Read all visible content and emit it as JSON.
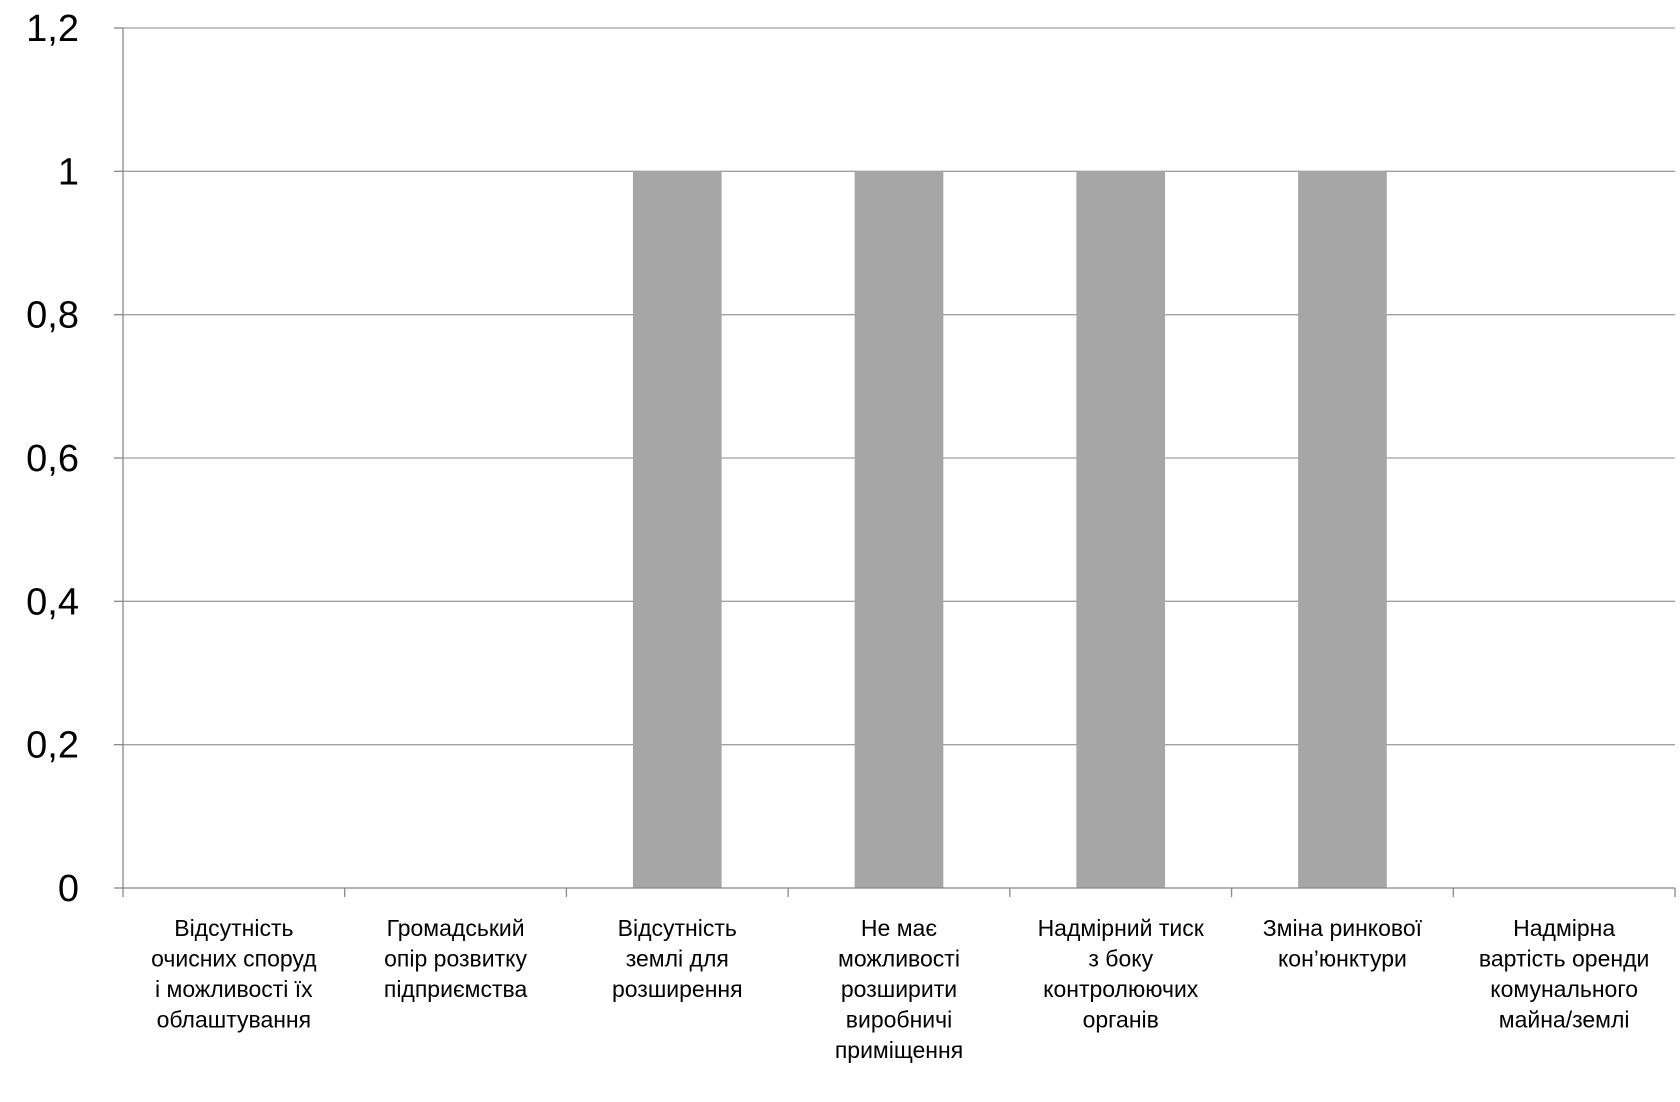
{
  "chart_data": {
    "type": "bar",
    "title": "",
    "xlabel": "",
    "ylabel": "",
    "ylim": [
      0,
      1.2
    ],
    "y_ticks": [
      "0",
      "0,2",
      "0,4",
      "0,6",
      "0,8",
      "1",
      "1,2"
    ],
    "grid": true,
    "legend": "none",
    "bar_color": "#a6a6a6",
    "categories": [
      [
        "Відсутність",
        "очисних споруд",
        "і можливості їх",
        "облаштування"
      ],
      [
        "Громадський",
        "опір розвитку",
        "підприємства"
      ],
      [
        "Відсутність",
        "землі для",
        "розширення"
      ],
      [
        "Не має",
        "можливості",
        "розширити",
        "виробничі",
        "приміщення"
      ],
      [
        "Надмірний тиск",
        "з боку",
        "контролюючих",
        "органів"
      ],
      [
        "Зміна ринкової",
        "кон’юнктури"
      ],
      [
        "Надмірна",
        "вартість оренди",
        "комунального",
        "майна/землі"
      ]
    ],
    "values": [
      0,
      0,
      1,
      1,
      1,
      1,
      0
    ]
  }
}
